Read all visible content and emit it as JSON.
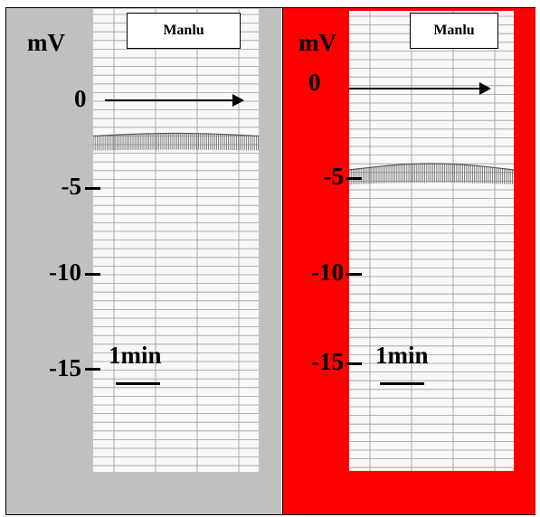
{
  "left_panel": {
    "background": "#c0c0c0",
    "unit": "mV",
    "box_label": "Manlu",
    "zero_label": "0",
    "ticks": [
      "-5",
      "-10",
      "-15"
    ],
    "scale_label": "1min",
    "trace_level_mV": -2.5
  },
  "right_panel": {
    "background": "#ff0000",
    "unit": "mV",
    "box_label": "Manlu",
    "zero_label": "0",
    "ticks": [
      "-5",
      "-10",
      "-15"
    ],
    "scale_label": "1min",
    "trace_level_mV": -5.0
  }
}
